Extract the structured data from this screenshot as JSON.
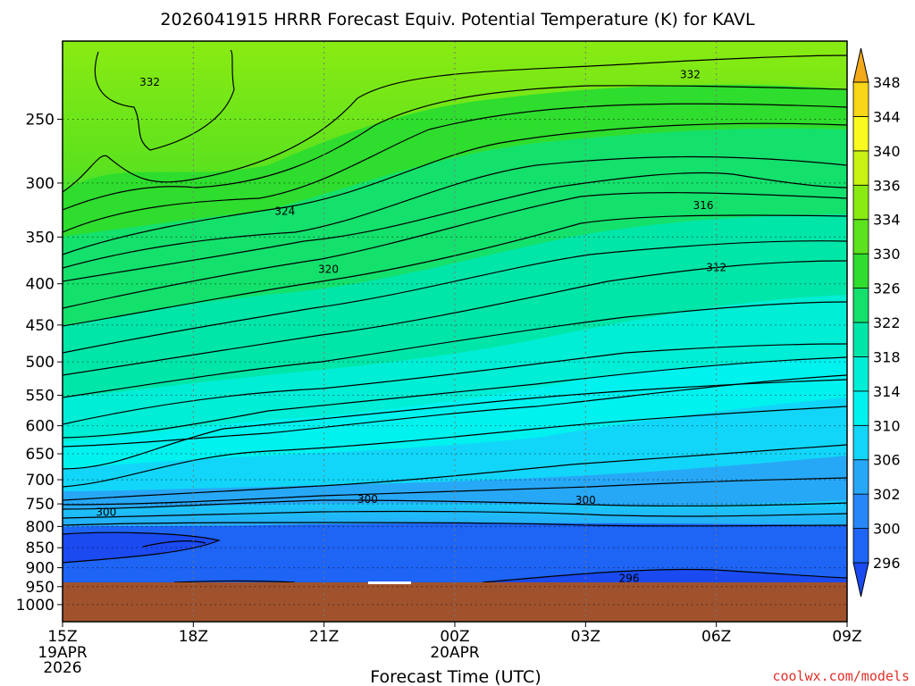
{
  "chart_data": {
    "type": "contour",
    "title": "2026041915 HRRR Forecast Equiv. Potential Temperature (K) for KAVL",
    "xlabel": "Forecast Time (UTC)",
    "ylabel": "",
    "x_ticks": [
      {
        "label": "15Z",
        "sub": [
          "19APR",
          "2026"
        ],
        "hour": 0
      },
      {
        "label": "18Z",
        "sub": [],
        "hour": 3
      },
      {
        "label": "21Z",
        "sub": [],
        "hour": 6
      },
      {
        "label": "00Z",
        "sub": [
          "20APR"
        ],
        "hour": 9
      },
      {
        "label": "03Z",
        "sub": [],
        "hour": 12
      },
      {
        "label": "06Z",
        "sub": [],
        "hour": 15
      },
      {
        "label": "09Z",
        "sub": [],
        "hour": 18
      }
    ],
    "xlim_hours": [
      0,
      18
    ],
    "y_ticks": [
      250,
      300,
      350,
      400,
      450,
      500,
      550,
      600,
      650,
      700,
      750,
      800,
      850,
      900,
      950,
      1000
    ],
    "ylim_hpa": [
      1050,
      200
    ],
    "y_scale": "log",
    "ground_pressure_hpa": 950,
    "colorbar": {
      "levels": [
        296,
        300,
        302,
        306,
        310,
        314,
        318,
        322,
        326,
        330,
        334,
        336,
        340,
        344,
        348
      ],
      "colors": [
        "#1a4af0",
        "#1e64f5",
        "#2787f7",
        "#27a8f7",
        "#12d6f9",
        "#00f2ef",
        "#00eed5",
        "#00e6a8",
        "#14e06c",
        "#2edd2e",
        "#5ce21e",
        "#8aeb12",
        "#c8f212",
        "#fafa20",
        "#f9d617",
        "#f3a91a"
      ]
    },
    "contour_labels": [
      {
        "value": "332",
        "hour": 2.0,
        "p": 225
      },
      {
        "value": "332",
        "hour": 14.4,
        "p": 220
      },
      {
        "value": "324",
        "hour": 5.1,
        "p": 325
      },
      {
        "value": "316",
        "hour": 14.7,
        "p": 320
      },
      {
        "value": "320",
        "hour": 6.1,
        "p": 384
      },
      {
        "value": "312",
        "hour": 15.0,
        "p": 382
      },
      {
        "value": "300",
        "hour": 1.0,
        "p": 768
      },
      {
        "value": "300",
        "hour": 7.0,
        "p": 740
      },
      {
        "value": "300",
        "hour": 12.0,
        "p": 742
      },
      {
        "value": "296",
        "hour": 13.0,
        "p": 928
      }
    ],
    "grid": true
  },
  "credit": "coolwx.com/models"
}
